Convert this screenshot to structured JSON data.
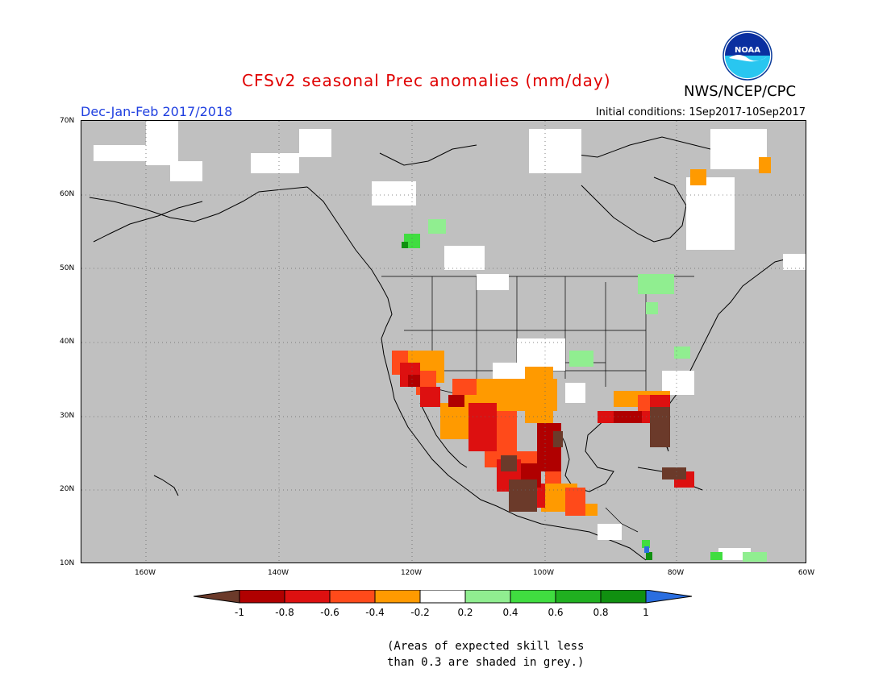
{
  "header": {
    "title": "CFSv2 seasonal Prec anomalies (mm/day)",
    "org": "NWS/NCEP/CPC",
    "season": "Dec-Jan-Feb 2017/2018",
    "initial_conditions": "Initial conditions: 1Sep2017-10Sep2017",
    "logo_text": "NOAA"
  },
  "map": {
    "lat_labels": [
      "70N",
      "60N",
      "50N",
      "40N",
      "30N",
      "20N",
      "10N"
    ],
    "lon_labels": [
      "160W",
      "140W",
      "120W",
      "100W",
      "80W",
      "60W"
    ],
    "land_color": "#c0c0c0",
    "grid": "dotted"
  },
  "colorbar": {
    "labels": [
      "-1",
      "-0.8",
      "-0.6",
      "-0.4",
      "-0.2",
      "0.2",
      "0.4",
      "0.6",
      "0.8",
      "1"
    ],
    "colors": [
      "#6b3a2a",
      "#b00000",
      "#dd1010",
      "#ff4a1a",
      "#ff9a00",
      "#ffffff",
      "#90ee90",
      "#40dd40",
      "#20b020",
      "#109010",
      "#2a6ee0"
    ]
  },
  "footer": {
    "note_line1": "(Areas of expected skill less",
    "note_line2": "than 0.3 are shaded in grey.)"
  }
}
